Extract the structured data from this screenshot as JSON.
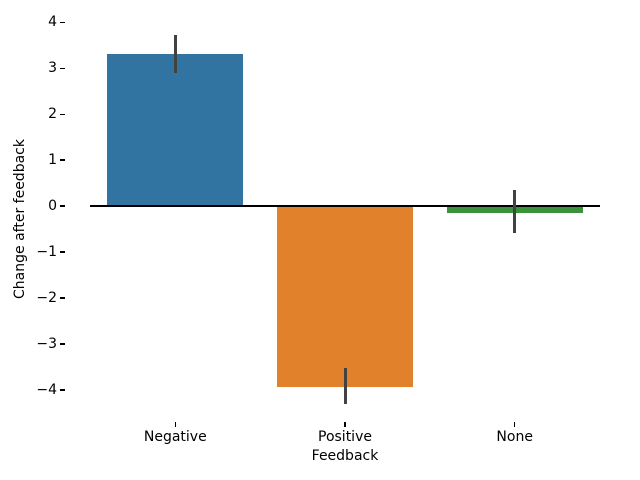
{
  "chart_data": {
    "type": "bar",
    "title": "",
    "xlabel": "Feedback",
    "ylabel": "Change after feedback",
    "categories": [
      "Negative",
      "Positive",
      "None"
    ],
    "values": [
      3.31,
      -3.93,
      -0.16
    ],
    "error_bars": {
      "low": [
        2.9,
        -4.3,
        -0.58
      ],
      "high": [
        3.72,
        -3.52,
        0.36
      ]
    },
    "bar_colors": [
      "#3274a1",
      "#e1812c",
      "#3a923a"
    ],
    "errorbar_color": "#424242",
    "zero_line": {
      "present": true,
      "color": "#000000",
      "x_span": [
        -0.5,
        2.5
      ]
    },
    "xlim": [
      -0.65,
      2.65
    ],
    "ylim": [
      -4.7,
      4.14
    ],
    "yticks": [
      4,
      3,
      2,
      1,
      0,
      -1,
      -2,
      -3,
      -4
    ],
    "ytick_labels": [
      "4",
      "3",
      "2",
      "1",
      "0",
      "−1",
      "−2",
      "−3",
      "−4"
    ],
    "bar_width": 0.8,
    "grid": false,
    "legend": null,
    "background": "#ffffff"
  }
}
